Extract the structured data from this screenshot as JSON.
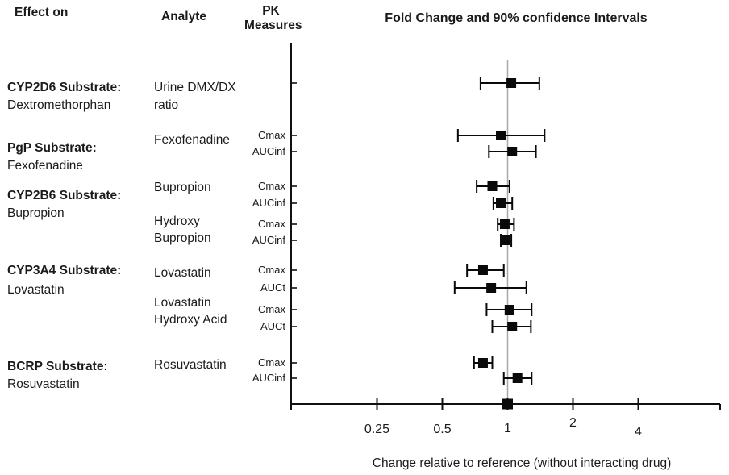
{
  "colors": {
    "text": "#1b1b1b",
    "axis": "#111111",
    "marker": "#0a0a0a",
    "reference_line": "#a8a8a8",
    "background": "#ffffff"
  },
  "headers": {
    "effect_on": "Effect on",
    "analyte": "Analyte",
    "pk_measures_line1": "PK",
    "pk_measures_line2": "Measures"
  },
  "chart_data": {
    "type": "scatter",
    "subtype": "forest-plot",
    "title": "Fold Change and 90% confidence Intervals",
    "xlabel": "Change relative to reference (without interacting drug)",
    "x_scale": "log2",
    "x_ticks": [
      "0.25",
      "0.5",
      "1",
      "2",
      "4"
    ],
    "x_tick_values": [
      0.25,
      0.5,
      1,
      2,
      4
    ],
    "x_range": [
      0.1,
      9.5
    ],
    "reference_line_x": 1,
    "error_bars": "90% confidence interval",
    "grid": false,
    "legend": false,
    "groups": [
      {
        "effect_on": [
          "CYP2D6 Substrate:",
          "Dextromethorphan"
        ],
        "label_ys": [
          100,
          122
        ],
        "analytes": [
          {
            "name": [
              "Urine DMX/DX",
              "ratio"
            ],
            "label_ys": [
              100,
              122
            ],
            "measures": [
              {
                "pk": "",
                "y": 103,
                "value": 1.04,
                "ci_low": 0.75,
                "ci_high": 1.4
              }
            ]
          }
        ]
      },
      {
        "effect_on": [
          "PgP Substrate:",
          "Fexofenadine"
        ],
        "label_ys": [
          175,
          197
        ],
        "analytes": [
          {
            "name": [
              "Fexofenadine"
            ],
            "label_ys": [
              165
            ],
            "measures": [
              {
                "pk": "Cmax",
                "y": 168,
                "value": 0.93,
                "ci_low": 0.59,
                "ci_high": 1.48
              },
              {
                "pk": "AUCinf",
                "y": 188,
                "value": 1.05,
                "ci_low": 0.82,
                "ci_high": 1.35
              }
            ]
          }
        ]
      },
      {
        "effect_on": [
          "CYP2B6 Substrate:",
          "Bupropion"
        ],
        "label_ys": [
          234,
          256
        ],
        "analytes": [
          {
            "name": [
              "Bupropion"
            ],
            "label_ys": [
              224
            ],
            "measures": [
              {
                "pk": "Cmax",
                "y": 231,
                "value": 0.85,
                "ci_low": 0.72,
                "ci_high": 1.02
              },
              {
                "pk": "AUCinf",
                "y": 252,
                "value": 0.93,
                "ci_low": 0.86,
                "ci_high": 1.05
              }
            ]
          },
          {
            "name": [
              "Hydroxy",
              "Bupropion"
            ],
            "label_ys": [
              266,
              287
            ],
            "measures": [
              {
                "pk": "Cmax",
                "y": 278,
                "value": 0.97,
                "ci_low": 0.9,
                "ci_high": 1.07
              },
              {
                "pk": "AUCinf",
                "y": 298,
                "value": 0.98,
                "ci_low": 0.93,
                "ci_high": 1.04
              }
            ]
          }
        ]
      },
      {
        "effect_on": [
          "CYP3A4 Substrate:",
          "Lovastatin"
        ],
        "label_ys": [
          327,
          351
        ],
        "analytes": [
          {
            "name": [
              "Lovastatin"
            ],
            "label_ys": [
              330
            ],
            "measures": [
              {
                "pk": "Cmax",
                "y": 335,
                "value": 0.77,
                "ci_low": 0.65,
                "ci_high": 0.96
              },
              {
                "pk": "AUCt",
                "y": 357,
                "value": 0.84,
                "ci_low": 0.57,
                "ci_high": 1.22
              }
            ]
          },
          {
            "name": [
              "Lovastatin",
              "Hydroxy Acid"
            ],
            "label_ys": [
              367,
              388
            ],
            "measures": [
              {
                "pk": "Cmax",
                "y": 384,
                "value": 1.02,
                "ci_low": 0.8,
                "ci_high": 1.29
              },
              {
                "pk": "AUCt",
                "y": 405,
                "value": 1.05,
                "ci_low": 0.85,
                "ci_high": 1.28
              }
            ]
          }
        ]
      },
      {
        "effect_on": [
          "BCRP Substrate:",
          "Rosuvastatin"
        ],
        "label_ys": [
          446,
          468
        ],
        "analytes": [
          {
            "name": [
              "Rosuvastatin"
            ],
            "label_ys": [
              444
            ],
            "measures": [
              {
                "pk": "Cmax",
                "y": 450,
                "value": 0.77,
                "ci_low": 0.7,
                "ci_high": 0.85
              },
              {
                "pk": "AUCinf",
                "y": 469,
                "value": 1.11,
                "ci_low": 0.96,
                "ci_high": 1.29
              }
            ]
          }
        ]
      }
    ]
  }
}
